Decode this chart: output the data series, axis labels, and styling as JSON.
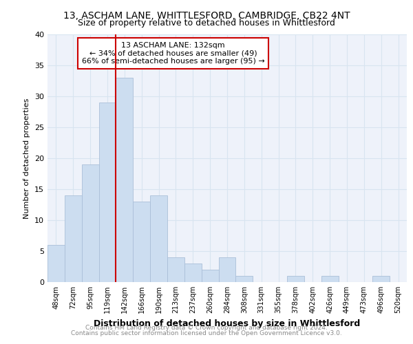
{
  "title1": "13, ASCHAM LANE, WHITTLESFORD, CAMBRIDGE, CB22 4NT",
  "title2": "Size of property relative to detached houses in Whittlesford",
  "xlabel": "Distribution of detached houses by size in Whittlesford",
  "ylabel": "Number of detached properties",
  "footer1": "Contains HM Land Registry data © Crown copyright and database right 2024.",
  "footer2": "Contains public sector information licensed under the Open Government Licence v3.0.",
  "bin_labels": [
    "48sqm",
    "72sqm",
    "95sqm",
    "119sqm",
    "142sqm",
    "166sqm",
    "190sqm",
    "213sqm",
    "237sqm",
    "260sqm",
    "284sqm",
    "308sqm",
    "331sqm",
    "355sqm",
    "378sqm",
    "402sqm",
    "426sqm",
    "449sqm",
    "473sqm",
    "496sqm",
    "520sqm"
  ],
  "values": [
    6,
    14,
    19,
    29,
    33,
    13,
    14,
    4,
    3,
    2,
    4,
    1,
    0,
    0,
    1,
    0,
    1,
    0,
    0,
    1,
    0
  ],
  "bar_color": "#ccddf0",
  "bar_edge_color": "#aabfd8",
  "vline_color": "#cc0000",
  "annotation_text": "13 ASCHAM LANE: 132sqm\n← 34% of detached houses are smaller (49)\n66% of semi-detached houses are larger (95) →",
  "annotation_box_color": "#ffffff",
  "annotation_box_edge": "#cc0000",
  "grid_color": "#d8e4f0",
  "background_color": "#eef2fa",
  "ylim": [
    0,
    40
  ],
  "yticks": [
    0,
    5,
    10,
    15,
    20,
    25,
    30,
    35,
    40
  ]
}
